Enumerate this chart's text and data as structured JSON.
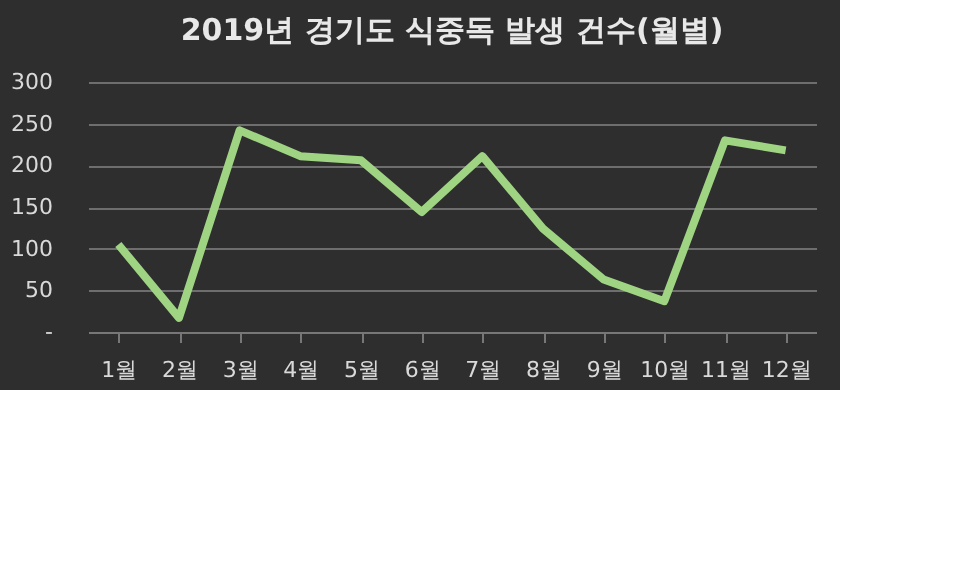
{
  "chart_data": {
    "type": "line",
    "title": "2019년 경기도 식중독 발생 건수(월별)",
    "categories": [
      "1월",
      "2월",
      "3월",
      "4월",
      "5월",
      "6월",
      "7월",
      "8월",
      "9월",
      "10월",
      "11월",
      "12월"
    ],
    "series": [
      {
        "color": "#9fd483",
        "values": [
          105,
          17,
          242,
          211,
          206,
          144,
          211,
          124,
          63,
          37,
          230,
          218
        ]
      }
    ],
    "ylim": [
      0,
      300
    ],
    "yticks": [
      {
        "value": 0,
        "label": "-"
      },
      50,
      100,
      150,
      200,
      250,
      300
    ],
    "grid": "y",
    "legend": false,
    "marker": "none",
    "line_style": "solid"
  }
}
